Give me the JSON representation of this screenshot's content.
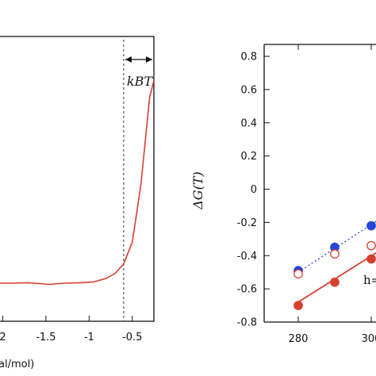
{
  "chart_data": [
    {
      "type": "line",
      "xlabel_visible": "al/mol)",
      "ylabel": "",
      "x_ticks": [
        "2",
        "-1.5",
        "-1",
        "-0.5"
      ],
      "x_tick_values": [
        -2,
        -1.5,
        -1,
        -0.5
      ],
      "xlim": [
        -2.05,
        -0.25
      ],
      "ylim": [
        0,
        1
      ],
      "annotation": "k_BT",
      "annotation_display": "kBT",
      "marker_x": -0.6,
      "grid": false,
      "series": [
        {
          "color": "#d6402f",
          "x": [
            -2.05,
            -1.9,
            -1.7,
            -1.45,
            -1.3,
            -1.1,
            -0.95,
            -0.8,
            -0.7,
            -0.6,
            -0.5,
            -0.4,
            -0.3,
            -0.25
          ],
          "y": [
            0.01,
            0.01,
            0.012,
            0.005,
            0.01,
            0.012,
            0.015,
            0.03,
            0.05,
            0.09,
            0.18,
            0.42,
            0.78,
            0.85
          ]
        }
      ]
    },
    {
      "type": "scatter",
      "ylabel": "ΔG(T)",
      "x_ticks": [
        "280",
        "300"
      ],
      "x_tick_values": [
        280,
        300
      ],
      "xlim": [
        275,
        305
      ],
      "y_ticks": [
        "0.8",
        "0.6",
        "0.4",
        "0.2",
        "0",
        "-0.2",
        "-0.4",
        "-0.6",
        "-0.8"
      ],
      "y_tick_values": [
        0.8,
        0.6,
        0.4,
        0.2,
        0,
        -0.2,
        -0.4,
        -0.6,
        -0.8
      ],
      "ylim": [
        -0.8,
        0.9
      ],
      "annotation": "h=",
      "grid": false,
      "series": [
        {
          "color": "#2546d8",
          "style": "filled-circle",
          "x": [
            280,
            290,
            300
          ],
          "y": [
            -0.49,
            -0.35,
            -0.22
          ]
        },
        {
          "color": "#2546d8",
          "style": "dotted-line",
          "x": [
            280,
            303
          ],
          "y": [
            -0.5,
            -0.17
          ]
        },
        {
          "color": "#d6402f",
          "style": "open-circle",
          "x": [
            280,
            290,
            300
          ],
          "y": [
            -0.51,
            -0.39,
            -0.34
          ]
        },
        {
          "color": "#d6402f",
          "style": "filled-circle",
          "x": [
            280,
            290,
            300
          ],
          "y": [
            -0.7,
            -0.56,
            -0.42
          ]
        },
        {
          "color": "#d6402f",
          "style": "solid-line",
          "x": [
            280,
            303
          ],
          "y": [
            -0.68,
            -0.36
          ]
        }
      ]
    }
  ]
}
